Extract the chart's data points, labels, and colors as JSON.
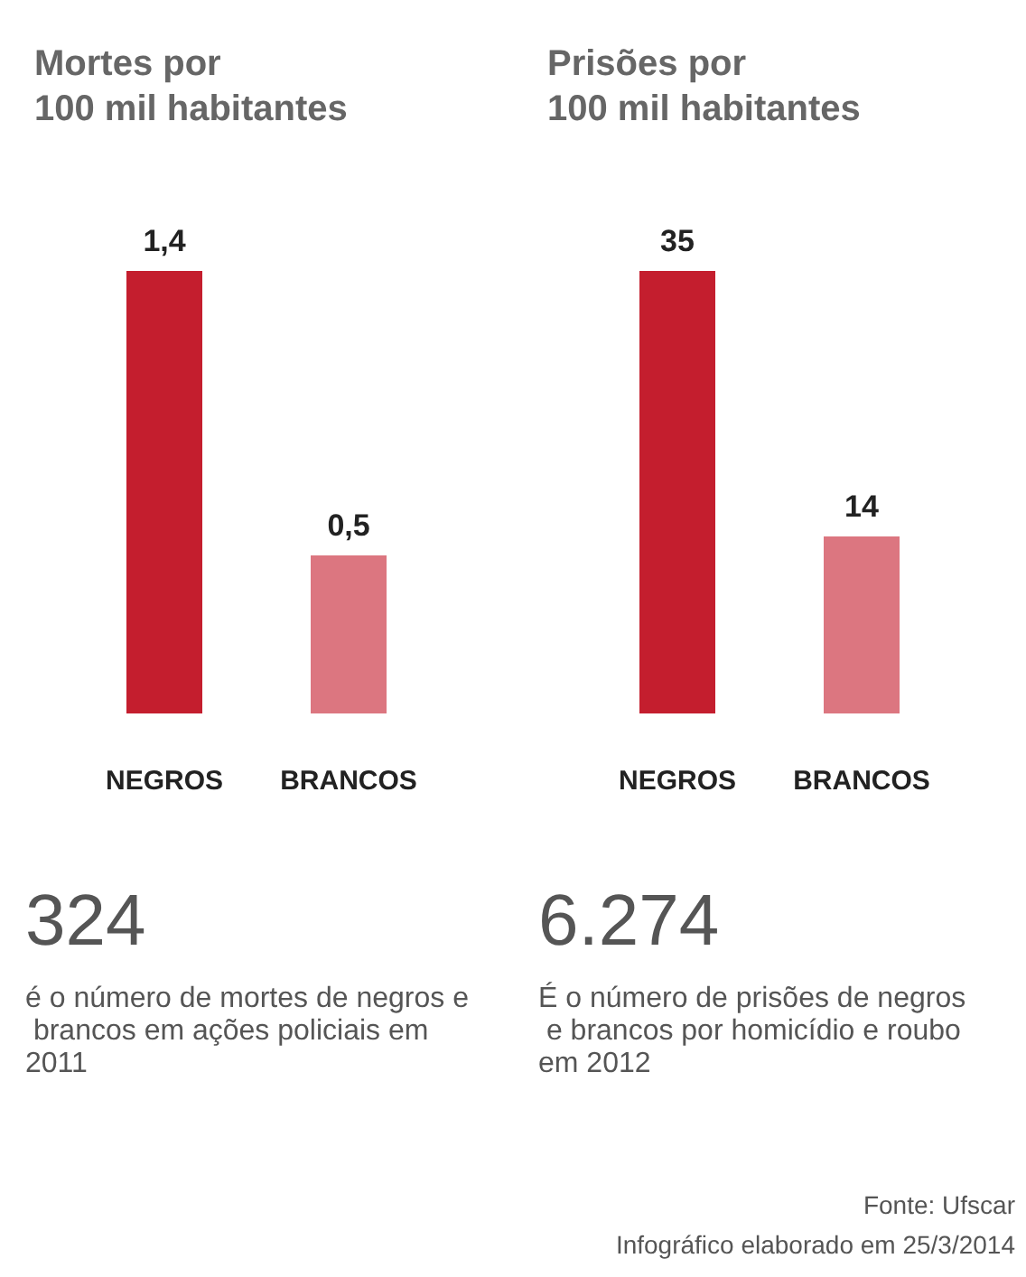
{
  "chart_data": [
    {
      "type": "bar",
      "title": "Mortes por\n100 mil habitantes",
      "categories": [
        "NEGROS",
        "BRANCOS"
      ],
      "values": [
        1.4,
        0.5
      ],
      "colors": [
        "#c41e2e",
        "#dc7680"
      ],
      "value_labels": [
        "1,4",
        "0,5"
      ],
      "annotations": [
        "324",
        "é o número de mortes de negros e brancos em ações policiais em 2011"
      ]
    },
    {
      "type": "bar",
      "title": "Prisões por\n100 mil habitantes",
      "categories": [
        "NEGROS",
        "BRANCOS"
      ],
      "values": [
        35,
        14
      ],
      "colors": [
        "#c41e2e",
        "#dc7680"
      ],
      "data_labels": true,
      "annotations": [
        "6.274",
        "É o número de prisões de negros e brancos por homicídio e roubo em 2012",
        "Fonte: Ufscar",
        "Infográfico elaborado em 25/3/2014"
      ]
    }
  ]
}
